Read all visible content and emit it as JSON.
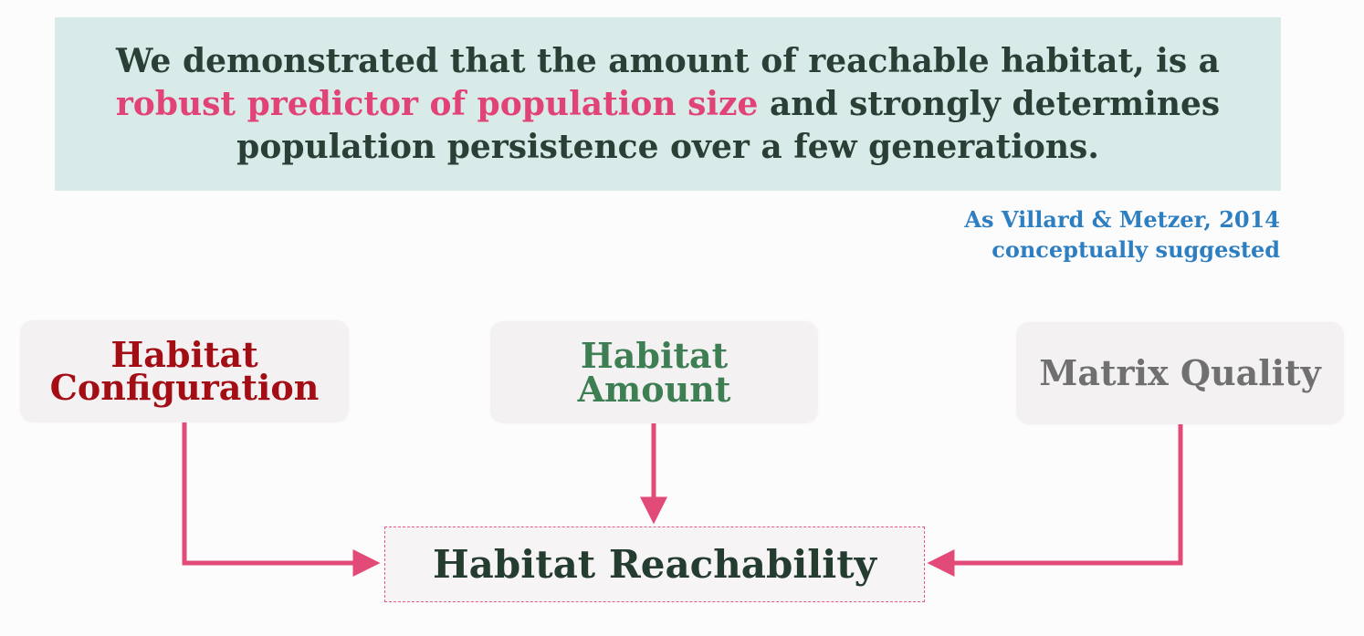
{
  "banner": {
    "line1": "We demonstrated that the amount of reachable habitat, is a",
    "line2_highlight": "robust predictor of population size",
    "line2_rest": " and strongly determines",
    "line3": "population persistence over a few generations.",
    "highlight_color": "#e24377",
    "text_color": "#2a3f36",
    "background_color": "#d9ebe8"
  },
  "citation": {
    "line1": "As Villard & Metzer, 2014",
    "line2": "conceptually suggested",
    "color": "#2d7fc1"
  },
  "diagram": {
    "nodes": {
      "configuration": {
        "line1": "Habitat",
        "line2": "Configuration",
        "color": "#a30d14"
      },
      "amount": {
        "line1": "Habitat",
        "line2": "Amount",
        "color": "#3d7e52"
      },
      "matrix": {
        "label": "Matrix Quality",
        "color": "#707070"
      },
      "reachability": {
        "label": "Habitat Reachability",
        "color": "#253d31"
      }
    },
    "arrow_color": "#e24a78",
    "edges": [
      {
        "from": "configuration",
        "to": "reachability"
      },
      {
        "from": "amount",
        "to": "reachability"
      },
      {
        "from": "matrix",
        "to": "reachability"
      }
    ]
  }
}
